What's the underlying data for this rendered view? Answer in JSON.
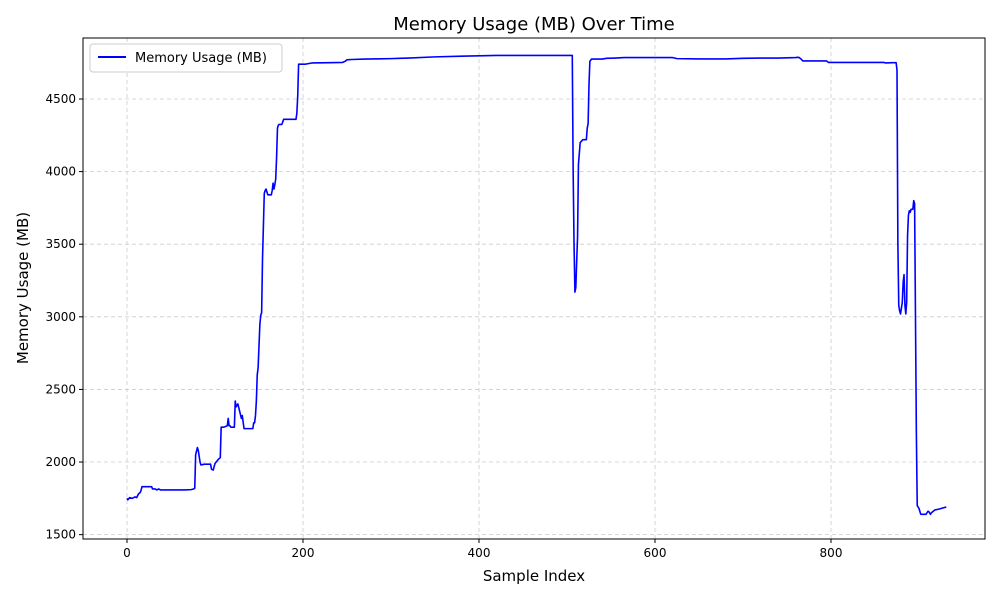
{
  "chart_data": {
    "type": "line",
    "title": "Memory Usage (MB) Over Time",
    "xlabel": "Sample Index",
    "ylabel": "Memory Usage (MB)",
    "xlim": [
      -50,
      975
    ],
    "ylim": [
      1470,
      4920
    ],
    "xticks": [
      0,
      200,
      400,
      600,
      800
    ],
    "yticks": [
      1500,
      2000,
      2500,
      3000,
      3500,
      4000,
      4500
    ],
    "grid": true,
    "legend_position": "top-left",
    "series": [
      {
        "name": "Memory Usage (MB)",
        "color": "#0000ff",
        "points": [
          [
            0,
            1750
          ],
          [
            1,
            1740
          ],
          [
            3,
            1755
          ],
          [
            6,
            1750
          ],
          [
            9,
            1760
          ],
          [
            11,
            1755
          ],
          [
            13,
            1780
          ],
          [
            15,
            1790
          ],
          [
            16,
            1805
          ],
          [
            17,
            1830
          ],
          [
            20,
            1830
          ],
          [
            25,
            1830
          ],
          [
            28,
            1830
          ],
          [
            29,
            1815
          ],
          [
            32,
            1815
          ],
          [
            34,
            1808
          ],
          [
            36,
            1815
          ],
          [
            38,
            1808
          ],
          [
            45,
            1808
          ],
          [
            55,
            1808
          ],
          [
            65,
            1808
          ],
          [
            73,
            1810
          ],
          [
            76,
            1815
          ],
          [
            77,
            1820
          ],
          [
            78,
            2050
          ],
          [
            80,
            2100
          ],
          [
            81,
            2080
          ],
          [
            83,
            2000
          ],
          [
            84,
            1980
          ],
          [
            88,
            1985
          ],
          [
            95,
            1985
          ],
          [
            96,
            1950
          ],
          [
            98,
            1945
          ],
          [
            100,
            1990
          ],
          [
            104,
            2020
          ],
          [
            106,
            2030
          ],
          [
            107,
            2240
          ],
          [
            110,
            2240
          ],
          [
            114,
            2250
          ],
          [
            115,
            2300
          ],
          [
            116,
            2250
          ],
          [
            117,
            2250
          ],
          [
            118,
            2240
          ],
          [
            122,
            2240
          ],
          [
            123,
            2420
          ],
          [
            124,
            2380
          ],
          [
            126,
            2400
          ],
          [
            128,
            2350
          ],
          [
            130,
            2300
          ],
          [
            131,
            2320
          ],
          [
            133,
            2230
          ],
          [
            138,
            2230
          ],
          [
            143,
            2230
          ],
          [
            144,
            2270
          ],
          [
            145,
            2270
          ],
          [
            146,
            2320
          ],
          [
            147,
            2420
          ],
          [
            148,
            2600
          ],
          [
            149,
            2650
          ],
          [
            150,
            2800
          ],
          [
            151,
            2950
          ],
          [
            152,
            3010
          ],
          [
            153,
            3030
          ],
          [
            154,
            3400
          ],
          [
            156,
            3850
          ],
          [
            157,
            3870
          ],
          [
            158,
            3880
          ],
          [
            160,
            3840
          ],
          [
            164,
            3840
          ],
          [
            165,
            3870
          ],
          [
            166,
            3920
          ],
          [
            167,
            3880
          ],
          [
            168,
            3910
          ],
          [
            169,
            3950
          ],
          [
            170,
            4100
          ],
          [
            171,
            4300
          ],
          [
            172,
            4320
          ],
          [
            173,
            4325
          ],
          [
            175,
            4325
          ],
          [
            176,
            4325
          ],
          [
            178,
            4360
          ],
          [
            186,
            4360
          ],
          [
            192,
            4360
          ],
          [
            193,
            4400
          ],
          [
            194,
            4520
          ],
          [
            195,
            4740
          ],
          [
            200,
            4740
          ],
          [
            203,
            4740
          ],
          [
            210,
            4748
          ],
          [
            230,
            4750
          ],
          [
            245,
            4752
          ],
          [
            248,
            4760
          ],
          [
            250,
            4770
          ],
          [
            255,
            4772
          ],
          [
            270,
            4775
          ],
          [
            300,
            4778
          ],
          [
            310,
            4780
          ],
          [
            320,
            4782
          ],
          [
            350,
            4790
          ],
          [
            380,
            4795
          ],
          [
            400,
            4797
          ],
          [
            420,
            4800
          ],
          [
            450,
            4800
          ],
          [
            480,
            4800
          ],
          [
            500,
            4800
          ],
          [
            506,
            4800
          ],
          [
            507,
            4000
          ],
          [
            508,
            3500
          ],
          [
            509,
            3170
          ],
          [
            510,
            3200
          ],
          [
            511,
            3380
          ],
          [
            512,
            3550
          ],
          [
            513,
            4050
          ],
          [
            515,
            4200
          ],
          [
            518,
            4220
          ],
          [
            520,
            4220
          ],
          [
            522,
            4220
          ],
          [
            523,
            4300
          ],
          [
            524,
            4330
          ],
          [
            525,
            4600
          ],
          [
            526,
            4760
          ],
          [
            528,
            4775
          ],
          [
            540,
            4775
          ],
          [
            545,
            4780
          ],
          [
            555,
            4782
          ],
          [
            565,
            4785
          ],
          [
            580,
            4785
          ],
          [
            600,
            4785
          ],
          [
            620,
            4785
          ],
          [
            625,
            4778
          ],
          [
            650,
            4776
          ],
          [
            680,
            4776
          ],
          [
            700,
            4780
          ],
          [
            720,
            4782
          ],
          [
            740,
            4782
          ],
          [
            760,
            4785
          ],
          [
            762,
            4787
          ],
          [
            764,
            4785
          ],
          [
            766,
            4775
          ],
          [
            768,
            4762
          ],
          [
            780,
            4762
          ],
          [
            790,
            4762
          ],
          [
            795,
            4762
          ],
          [
            797,
            4752
          ],
          [
            800,
            4752
          ],
          [
            830,
            4752
          ],
          [
            860,
            4752
          ],
          [
            862,
            4748
          ],
          [
            870,
            4750
          ],
          [
            874,
            4750
          ],
          [
            875,
            4700
          ],
          [
            876,
            3500
          ],
          [
            877,
            3080
          ],
          [
            878,
            3040
          ],
          [
            879,
            3020
          ],
          [
            880,
            3060
          ],
          [
            881,
            3100
          ],
          [
            882,
            3240
          ],
          [
            883,
            3290
          ],
          [
            884,
            3080
          ],
          [
            885,
            3020
          ],
          [
            886,
            3100
          ],
          [
            887,
            3560
          ],
          [
            888,
            3700
          ],
          [
            889,
            3730
          ],
          [
            890,
            3720
          ],
          [
            891,
            3740
          ],
          [
            893,
            3740
          ],
          [
            894,
            3800
          ],
          [
            895,
            3780
          ],
          [
            896,
            3000
          ],
          [
            897,
            2200
          ],
          [
            898,
            1700
          ],
          [
            900,
            1680
          ],
          [
            901,
            1660
          ],
          [
            902,
            1640
          ],
          [
            905,
            1640
          ],
          [
            908,
            1640
          ],
          [
            909,
            1650
          ],
          [
            910,
            1660
          ],
          [
            911,
            1660
          ],
          [
            912,
            1650
          ],
          [
            913,
            1640
          ],
          [
            914,
            1650
          ],
          [
            916,
            1660
          ],
          [
            918,
            1670
          ],
          [
            922,
            1675
          ],
          [
            925,
            1680
          ],
          [
            928,
            1685
          ],
          [
            931,
            1690
          ]
        ]
      }
    ]
  }
}
